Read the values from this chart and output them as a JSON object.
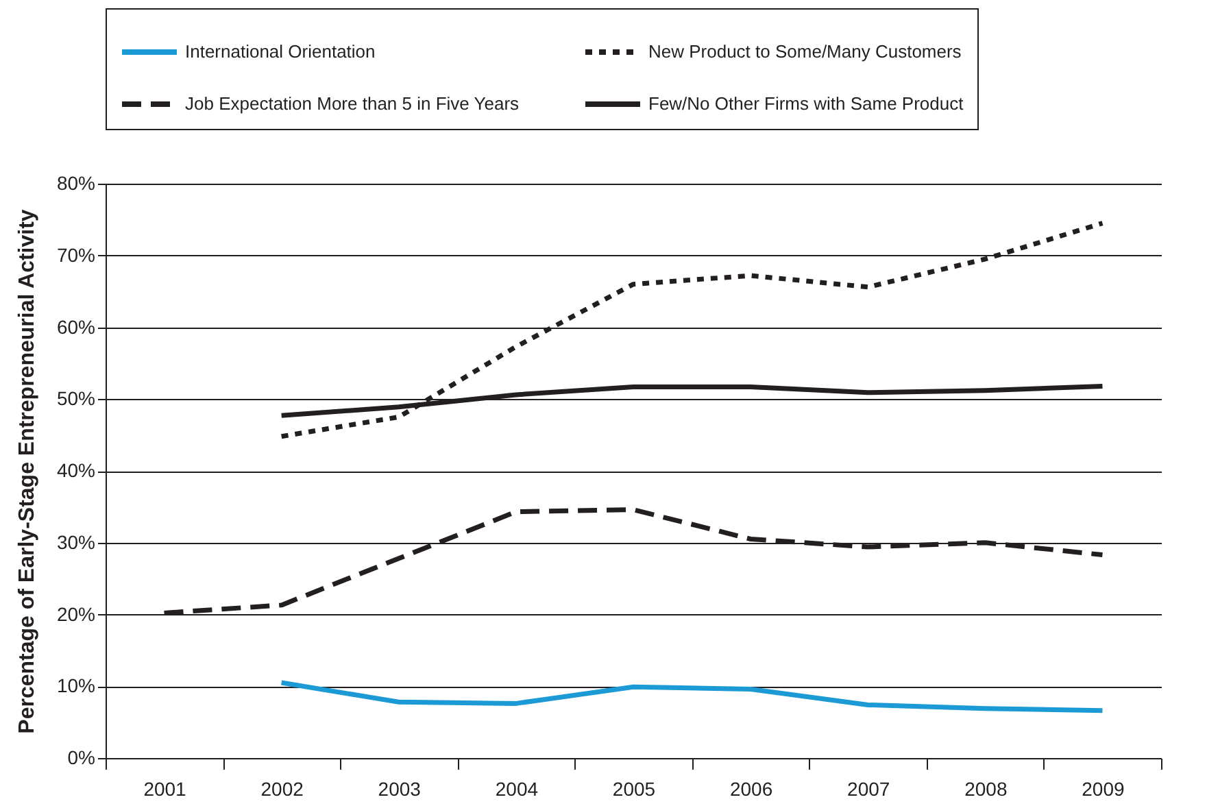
{
  "chart_data": {
    "type": "line",
    "ylabel": "Percentage of Early-Stage Entrepreneurial Activity",
    "categories": [
      "2001",
      "2002",
      "2003",
      "2004",
      "2005",
      "2006",
      "2007",
      "2008",
      "2009"
    ],
    "ylim": [
      0,
      80
    ],
    "yticks": [
      {
        "value": 0,
        "label": "0%"
      },
      {
        "value": 10,
        "label": "10%"
      },
      {
        "value": 20,
        "label": "20%"
      },
      {
        "value": 30,
        "label": "30%"
      },
      {
        "value": 40,
        "label": "40%"
      },
      {
        "value": 50,
        "label": "50%"
      },
      {
        "value": 60,
        "label": "60%"
      },
      {
        "value": 70,
        "label": "70%"
      },
      {
        "value": 80,
        "label": "80%"
      }
    ],
    "grid": "y",
    "legend": "top",
    "marker": "none",
    "series": [
      {
        "name": "International Orientation",
        "color": "#1b9ad6",
        "line_style": "solid",
        "values": [
          null,
          10.5,
          7.8,
          7.6,
          9.9,
          9.6,
          7.4,
          6.9,
          6.6
        ]
      },
      {
        "name": "New Product to Some/Many Customers",
        "color": "#231f20",
        "line_style": "dotted",
        "values": [
          null,
          44.8,
          47.5,
          57.3,
          66.0,
          67.2,
          65.6,
          69.5,
          74.5
        ]
      },
      {
        "name": "Job Expectation More than 5 in Five Years",
        "color": "#231f20",
        "line_style": "dashed",
        "values": [
          20.2,
          21.3,
          27.8,
          34.3,
          34.6,
          30.5,
          29.4,
          30.0,
          28.3
        ]
      },
      {
        "name": "Few/No Other Firms with Same Product",
        "color": "#231f20",
        "line_style": "solid",
        "values": [
          null,
          47.7,
          48.9,
          50.6,
          51.7,
          51.7,
          50.9,
          51.2,
          51.8
        ]
      }
    ]
  }
}
